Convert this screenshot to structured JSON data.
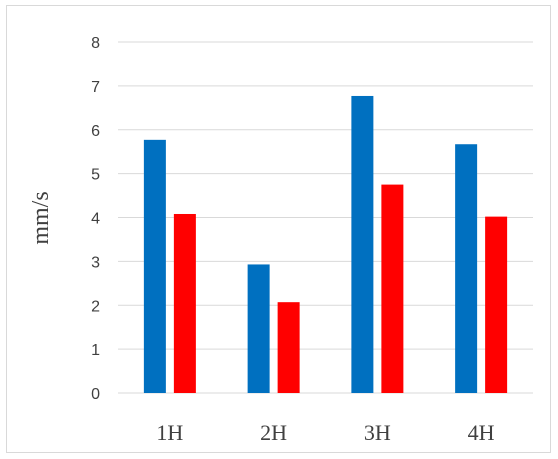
{
  "chart_data": {
    "type": "bar",
    "categories": [
      "1H",
      "2H",
      "3H",
      "4H"
    ],
    "series": [
      {
        "values": [
          5.77,
          2.93,
          6.77,
          5.67
        ],
        "color": "#0070c0"
      },
      {
        "values": [
          4.08,
          2.07,
          4.75,
          4.02
        ],
        "color": "#ff0000"
      }
    ],
    "title": "",
    "xlabel": "",
    "ylabel": "mm/s",
    "ylim": [
      0,
      8
    ],
    "yticks": [
      "0",
      "1",
      "2",
      "3",
      "4",
      "5",
      "6",
      "7",
      "8"
    ],
    "grid": true,
    "legend": "none"
  }
}
